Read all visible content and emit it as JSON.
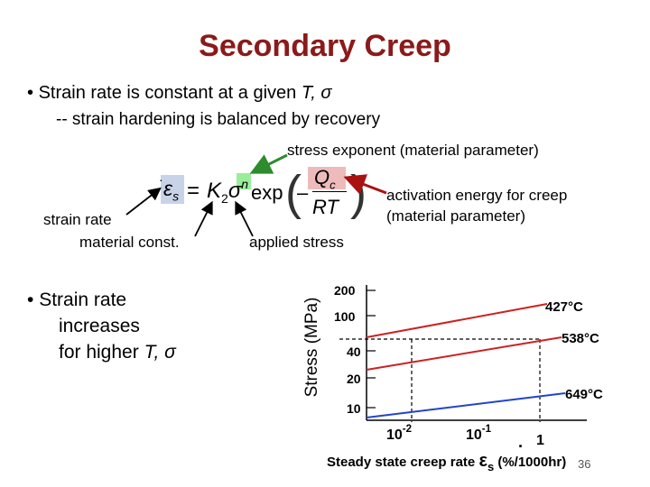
{
  "title": "Secondary Creep",
  "bullet1": {
    "marker": "•",
    "text": "Strain rate is constant at a given",
    "symbols": "T, σ",
    "sub": "-- strain hardening is balanced by recovery"
  },
  "equation": {
    "lhs_symbol": "ε",
    "lhs_subscript": "s",
    "equals": "=",
    "coefficient": "K",
    "coefficient_subscript": "2",
    "stress_symbol": "σ",
    "exponent": "n",
    "function": "exp",
    "minus": "–",
    "numerator": "Q",
    "numerator_subscript": "c",
    "denominator": "RT"
  },
  "annotations": {
    "stress_exponent": "stress exponent (material parameter)",
    "activation_energy_line1": "activation energy for creep",
    "activation_energy_line2": "(material parameter)",
    "strain_rate": "strain rate",
    "material_const": "material const.",
    "applied_stress": "applied stress"
  },
  "bullet2": {
    "marker": "•",
    "line1": "Strain rate",
    "line2": "increases",
    "line3": "for higher",
    "symbols": "T, σ"
  },
  "plot": {
    "y_axis_label": "Stress (MPa)",
    "y_ticks": [
      "200",
      "100",
      "40",
      "20",
      "10"
    ],
    "x_ticks": [
      {
        "base": "10",
        "exp": "-2"
      },
      {
        "base": "10",
        "exp": "-1"
      },
      {
        "base": "1",
        "exp": ""
      }
    ],
    "x_axis_label_prefix": "Steady state creep rate",
    "x_axis_symbol": "ε",
    "x_axis_symbol_subscript": "s",
    "x_axis_label_suffix": "(%/1000hr)",
    "curves": [
      {
        "label": "427°C",
        "color": "#cc2222"
      },
      {
        "label": "538°C",
        "color": "#cc2222"
      },
      {
        "label": "649°C",
        "color": "#2244cc"
      }
    ]
  },
  "colors": {
    "title": "#8b1a1a",
    "arrow_stress_exponent": "#2e8b2e",
    "arrow_activation": "#aa1111",
    "highlight_exponent": "#99ee99",
    "highlight_activation": "#eebbbb"
  },
  "page_number": "36"
}
